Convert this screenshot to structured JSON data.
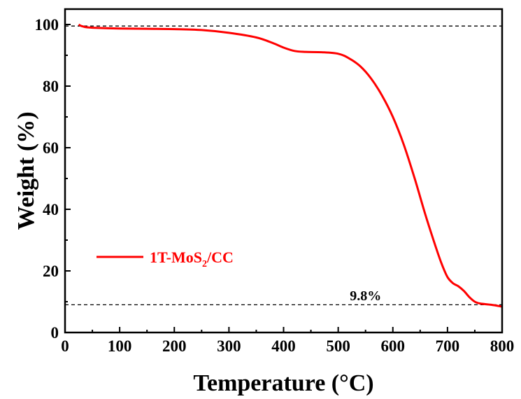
{
  "chart_data": {
    "type": "line",
    "title": "",
    "xlabel": "Temperature (°C)",
    "ylabel": "Weight (%)",
    "xlim": [
      0,
      800
    ],
    "ylim": [
      0,
      105
    ],
    "xticks": [
      "0",
      "100",
      "200",
      "300",
      "400",
      "500",
      "600",
      "700",
      "800"
    ],
    "yticks": [
      "0",
      "20",
      "40",
      "60",
      "80",
      "100"
    ],
    "grid": false,
    "legend_position": "lower-left",
    "series": [
      {
        "name": "1T-MoS",
        "name_subscript": "2",
        "name_suffix": "/CC",
        "color": "#ff0000",
        "x": [
          25,
          30,
          40,
          60,
          100,
          150,
          200,
          250,
          300,
          350,
          380,
          400,
          420,
          440,
          470,
          500,
          520,
          540,
          560,
          580,
          600,
          620,
          640,
          660,
          680,
          690,
          700,
          710,
          720,
          730,
          740,
          750,
          760,
          780,
          800
        ],
        "y": [
          100,
          99.5,
          99.1,
          98.9,
          98.7,
          98.6,
          98.5,
          98.2,
          97.3,
          95.8,
          94.0,
          92.5,
          91.4,
          91.1,
          91.0,
          90.5,
          89.0,
          86.5,
          82.5,
          77.0,
          70.0,
          61.0,
          50.0,
          38.0,
          27.0,
          22.0,
          18.0,
          16.0,
          15.0,
          13.5,
          11.5,
          10.0,
          9.4,
          9.0,
          8.4
        ]
      }
    ],
    "reference_lines": [
      {
        "y": 99.5,
        "style": "dashed"
      },
      {
        "y": 9.0,
        "style": "dashed"
      }
    ],
    "annotations": [
      {
        "text": "9.8%",
        "x": 550,
        "y": 10.5
      }
    ]
  }
}
